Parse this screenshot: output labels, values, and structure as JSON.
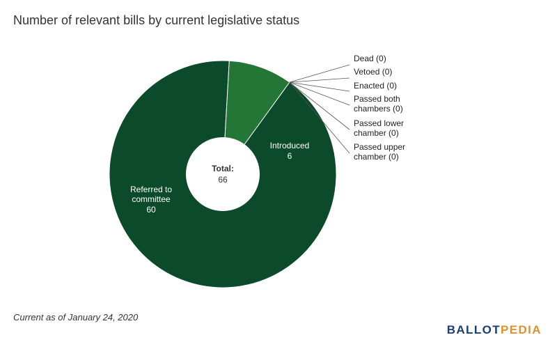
{
  "title": "Number of relevant bills by current legislative status",
  "footnote": "Current as of January 24, 2020",
  "logo": {
    "part1": "BALLOT",
    "part2": "PEDIA"
  },
  "colors": {
    "referred": "#0b4a2a",
    "introduced": "#237636",
    "center": "#ffffff",
    "leader_line": "#555555",
    "slice_label": "#ffffff",
    "outside_label": "#222222"
  },
  "chart_data": {
    "type": "pie",
    "style": "donut",
    "title": "Number of relevant bills by current legislative status",
    "center_label": {
      "title": "Total:",
      "value": "66"
    },
    "total": 66,
    "slices": [
      {
        "label": "Referred to committee",
        "lines": [
          "Referred to",
          "committee"
        ],
        "value": 60
      },
      {
        "label": "Introduced",
        "lines": [
          "Introduced"
        ],
        "value": 6
      },
      {
        "label": "Dead",
        "lines": [
          "Dead (0)"
        ],
        "value": 0
      },
      {
        "label": "Vetoed",
        "lines": [
          "Vetoed (0)"
        ],
        "value": 0
      },
      {
        "label": "Enacted",
        "lines": [
          "Enacted (0)"
        ],
        "value": 0
      },
      {
        "label": "Passed both chambers",
        "lines": [
          "Passed both",
          "chambers (0)"
        ],
        "value": 0
      },
      {
        "label": "Passed lower chamber",
        "lines": [
          "Passed lower",
          "chamber (0)"
        ],
        "value": 0
      },
      {
        "label": "Passed upper chamber",
        "lines": [
          "Passed upper",
          "chamber (0)"
        ],
        "value": 0
      }
    ]
  }
}
